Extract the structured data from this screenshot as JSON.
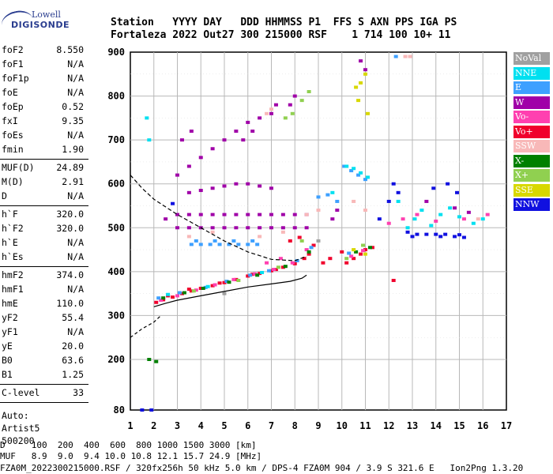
{
  "logo": {
    "line1": "Lowell",
    "line2": "DIGISONDE"
  },
  "header": {
    "line1": "Station   YYYY DAY   DDD HHMMSS P1  FFS S AXN PPS IGA PS",
    "line2": "Fortaleza 2022 Out27 300 215000 RSF    1 714 100 10+ 11"
  },
  "params": {
    "group1": [
      {
        "label": "foF2",
        "value": "8.550"
      },
      {
        "label": "foF1",
        "value": "N/A"
      },
      {
        "label": "foF1p",
        "value": "N/A"
      },
      {
        "label": "foE",
        "value": "N/A"
      },
      {
        "label": "foEp",
        "value": "0.52"
      },
      {
        "label": "fxI",
        "value": "9.35"
      },
      {
        "label": "foEs",
        "value": "N/A"
      },
      {
        "label": "fmin",
        "value": "1.90"
      }
    ],
    "group2": [
      {
        "label": "MUF(D)",
        "value": "24.89"
      },
      {
        "label": "M(D)",
        "value": "2.91"
      },
      {
        "label": "D",
        "value": "N/A"
      }
    ],
    "group3": [
      {
        "label": "h`F",
        "value": "320.0"
      },
      {
        "label": "h`F2",
        "value": "320.0"
      },
      {
        "label": "h`E",
        "value": "N/A"
      },
      {
        "label": "h`Es",
        "value": "N/A"
      }
    ],
    "group4": [
      {
        "label": "hmF2",
        "value": "374.0"
      },
      {
        "label": "hmF1",
        "value": "N/A"
      },
      {
        "label": "hmE",
        "value": "110.0"
      },
      {
        "label": "yF2",
        "value": "55.4"
      },
      {
        "label": "yF1",
        "value": "N/A"
      },
      {
        "label": "yE",
        "value": "20.0"
      },
      {
        "label": "B0",
        "value": "63.6"
      },
      {
        "label": "B1",
        "value": "1.25"
      }
    ],
    "group5": [
      {
        "label": "C-level",
        "value": "33"
      }
    ],
    "auto": [
      "Auto:",
      "Artist5",
      "500200"
    ]
  },
  "footer": {
    "d_row": "D     100  200  400  600  800 1000 1500 3000 [km]",
    "muf_row": "MUF   8.9  9.0  9.4 10.0 10.8 12.1 15.7 24.9 [MHz]",
    "file_row": "FZA0M_2022300215000.RSF / 320fx256h 50 kHz 5.0 km / DPS-4 FZA0M 904 / 3.9 S 321.6 E   Ion2Png 1.3.20"
  },
  "legend": [
    {
      "label": "NoVal",
      "color": "#a0a0a0"
    },
    {
      "label": "NNE",
      "color": "#00e0f0"
    },
    {
      "label": "E",
      "color": "#3ea0ff"
    },
    {
      "label": "W",
      "color": "#a000a8"
    },
    {
      "label": "Vo-",
      "color": "#ff40b0"
    },
    {
      "label": "Vo+",
      "color": "#f0002c"
    },
    {
      "label": "SSW",
      "color": "#f8b8b8"
    },
    {
      "label": "X-",
      "color": "#008000"
    },
    {
      "label": "X+",
      "color": "#90d050"
    },
    {
      "label": "SSE",
      "color": "#d8d800"
    },
    {
      "label": "NNW",
      "color": "#1010e0"
    }
  ],
  "chart_data": {
    "type": "scatter",
    "xlim": [
      1,
      17
    ],
    "ylim": [
      80,
      900
    ],
    "x_ticks": [
      1,
      2,
      3,
      4,
      5,
      6,
      7,
      8,
      9,
      10,
      11,
      12,
      13,
      14,
      15,
      16,
      17
    ],
    "y_ticks": [
      80,
      200,
      300,
      400,
      500,
      600,
      700,
      800,
      900
    ],
    "grid": true,
    "legend_position": "right",
    "profile_solid": [
      [
        2.0,
        320
      ],
      [
        2.5,
        328
      ],
      [
        3.0,
        335
      ],
      [
        4.0,
        345
      ],
      [
        5.0,
        355
      ],
      [
        6.0,
        365
      ],
      [
        7.0,
        372
      ],
      [
        7.8,
        378
      ],
      [
        8.3,
        385
      ],
      [
        8.5,
        392
      ]
    ],
    "profile_dashed": [
      [
        1.0,
        250
      ],
      [
        1.5,
        270
      ],
      [
        2.0,
        285
      ],
      [
        2.3,
        300
      ]
    ],
    "profile_upper": [
      [
        1.0,
        620
      ],
      [
        1.5,
        590
      ],
      [
        2.0,
        565
      ],
      [
        3.0,
        530
      ],
      [
        4.0,
        500
      ],
      [
        5.0,
        470
      ],
      [
        6.0,
        445
      ],
      [
        7.0,
        428
      ],
      [
        8.0,
        425
      ],
      [
        8.5,
        435
      ]
    ],
    "series": [
      {
        "color": "#f0002c",
        "points": [
          [
            2.1,
            330
          ],
          [
            2.4,
            336
          ],
          [
            2.8,
            342
          ],
          [
            3.2,
            350
          ],
          [
            3.6,
            356
          ],
          [
            4.0,
            362
          ],
          [
            4.5,
            368
          ],
          [
            5.0,
            375
          ],
          [
            5.5,
            382
          ],
          [
            6.0,
            390
          ],
          [
            6.5,
            396
          ],
          [
            7.0,
            402
          ],
          [
            7.5,
            410
          ],
          [
            8.0,
            418
          ],
          [
            8.4,
            430
          ],
          [
            8.6,
            440
          ],
          [
            7.8,
            470
          ],
          [
            8.2,
            478
          ],
          [
            10.2,
            420
          ],
          [
            10.5,
            430
          ],
          [
            10.8,
            440
          ],
          [
            11.0,
            450
          ],
          [
            9.2,
            420
          ],
          [
            9.5,
            430
          ],
          [
            2.6,
            345
          ],
          [
            3.5,
            360
          ],
          [
            4.8,
            374
          ],
          [
            6.2,
            394
          ],
          [
            7.2,
            405
          ],
          [
            8.8,
            460
          ],
          [
            10.0,
            445
          ],
          [
            11.3,
            455
          ],
          [
            12.2,
            380
          ]
        ]
      },
      {
        "color": "#ff40b0",
        "points": [
          [
            2.3,
            335
          ],
          [
            3.0,
            345
          ],
          [
            3.8,
            358
          ],
          [
            4.6,
            370
          ],
          [
            5.4,
            382
          ],
          [
            6.3,
            395
          ],
          [
            7.1,
            405
          ],
          [
            7.9,
            420
          ],
          [
            8.5,
            450
          ],
          [
            6.8,
            420
          ],
          [
            7.4,
            430
          ],
          [
            10.4,
            435
          ],
          [
            10.9,
            448
          ],
          [
            12.0,
            510
          ],
          [
            12.6,
            520
          ],
          [
            13.2,
            530
          ],
          [
            14.0,
            515
          ],
          [
            15.2,
            520
          ],
          [
            16.2,
            530
          ]
        ]
      },
      {
        "color": "#3ea0ff",
        "points": [
          [
            2.2,
            340
          ],
          [
            3.1,
            352
          ],
          [
            4.2,
            364
          ],
          [
            5.1,
            378
          ],
          [
            6.1,
            392
          ],
          [
            6.9,
            402
          ],
          [
            8.1,
            425
          ],
          [
            8.7,
            455
          ],
          [
            10.3,
            442
          ],
          [
            3.6,
            462
          ],
          [
            4.0,
            462
          ],
          [
            4.4,
            462
          ],
          [
            4.8,
            462
          ],
          [
            5.2,
            462
          ],
          [
            5.6,
            462
          ],
          [
            6.0,
            462
          ],
          [
            6.4,
            462
          ],
          [
            3.8,
            470
          ],
          [
            4.6,
            470
          ],
          [
            5.4,
            470
          ],
          [
            6.2,
            470
          ],
          [
            9.0,
            570
          ],
          [
            9.4,
            575
          ],
          [
            9.8,
            560
          ],
          [
            10.1,
            640
          ],
          [
            10.4,
            630
          ],
          [
            10.7,
            620
          ],
          [
            11.0,
            610
          ],
          [
            12.3,
            890
          ]
        ]
      },
      {
        "color": "#00e0f0",
        "points": [
          [
            2.6,
            348
          ],
          [
            4.3,
            366
          ],
          [
            6.6,
            398
          ],
          [
            10.2,
            640
          ],
          [
            10.5,
            635
          ],
          [
            10.8,
            625
          ],
          [
            11.1,
            615
          ],
          [
            9.6,
            580
          ],
          [
            13.1,
            520
          ],
          [
            13.4,
            540
          ],
          [
            14.2,
            530
          ],
          [
            14.6,
            545
          ],
          [
            15.0,
            525
          ],
          [
            12.4,
            560
          ],
          [
            12.8,
            500
          ],
          [
            13.8,
            505
          ],
          [
            1.8,
            700
          ],
          [
            1.7,
            750
          ],
          [
            15.6,
            510
          ],
          [
            16.0,
            520
          ]
        ]
      },
      {
        "color": "#a000a8",
        "points": [
          [
            2.5,
            520
          ],
          [
            3.0,
            530
          ],
          [
            3.5,
            530
          ],
          [
            4.0,
            530
          ],
          [
            4.5,
            530
          ],
          [
            5.0,
            530
          ],
          [
            5.5,
            530
          ],
          [
            6.0,
            530
          ],
          [
            6.5,
            530
          ],
          [
            7.0,
            530
          ],
          [
            7.5,
            530
          ],
          [
            8.0,
            530
          ],
          [
            8.5,
            530
          ],
          [
            3.0,
            500
          ],
          [
            3.5,
            500
          ],
          [
            4.0,
            500
          ],
          [
            4.5,
            500
          ],
          [
            5.0,
            500
          ],
          [
            5.5,
            500
          ],
          [
            6.0,
            500
          ],
          [
            6.5,
            500
          ],
          [
            7.0,
            500
          ],
          [
            7.5,
            500
          ],
          [
            8.0,
            500
          ],
          [
            8.5,
            500
          ],
          [
            3.5,
            580
          ],
          [
            4.0,
            585
          ],
          [
            4.5,
            590
          ],
          [
            5.0,
            595
          ],
          [
            5.5,
            600
          ],
          [
            6.0,
            600
          ],
          [
            6.5,
            595
          ],
          [
            7.0,
            590
          ],
          [
            3.0,
            620
          ],
          [
            3.5,
            640
          ],
          [
            4.0,
            660
          ],
          [
            4.5,
            680
          ],
          [
            5.0,
            700
          ],
          [
            5.5,
            720
          ],
          [
            6.0,
            740
          ],
          [
            6.5,
            750
          ],
          [
            7.0,
            760
          ],
          [
            3.2,
            700
          ],
          [
            3.6,
            720
          ],
          [
            7.8,
            780
          ],
          [
            8.0,
            800
          ],
          [
            7.2,
            780
          ],
          [
            5.8,
            700
          ],
          [
            6.2,
            720
          ],
          [
            10.8,
            880
          ],
          [
            11.0,
            860
          ],
          [
            13.6,
            560
          ],
          [
            14.8,
            545
          ],
          [
            15.4,
            535
          ],
          [
            9.6,
            520
          ],
          [
            9.8,
            540
          ]
        ]
      },
      {
        "color": "#f8b8b8",
        "points": [
          [
            3.5,
            480
          ],
          [
            4.5,
            490
          ],
          [
            6.5,
            480
          ],
          [
            7.5,
            490
          ],
          [
            8.5,
            530
          ],
          [
            9.0,
            540
          ],
          [
            10.5,
            560
          ],
          [
            11.0,
            540
          ],
          [
            12.7,
            890
          ],
          [
            12.9,
            890
          ],
          [
            6.8,
            760
          ],
          [
            7.0,
            770
          ],
          [
            15.8,
            520
          ]
        ]
      },
      {
        "color": "#008000",
        "points": [
          [
            2.4,
            340
          ],
          [
            3.3,
            352
          ],
          [
            4.1,
            362
          ],
          [
            5.2,
            376
          ],
          [
            6.4,
            392
          ],
          [
            7.6,
            412
          ],
          [
            8.6,
            445
          ],
          [
            10.6,
            445
          ],
          [
            11.2,
            455
          ],
          [
            1.8,
            200
          ],
          [
            2.1,
            195
          ]
        ]
      },
      {
        "color": "#90d050",
        "points": [
          [
            3.7,
            356
          ],
          [
            5.6,
            380
          ],
          [
            7.3,
            410
          ],
          [
            8.3,
            470
          ],
          [
            10.2,
            430
          ],
          [
            10.9,
            460
          ],
          [
            7.6,
            750
          ],
          [
            7.9,
            760
          ],
          [
            8.3,
            790
          ],
          [
            8.6,
            810
          ]
        ]
      },
      {
        "color": "#d8d800",
        "points": [
          [
            10.6,
            820
          ],
          [
            10.8,
            830
          ],
          [
            11.0,
            850
          ],
          [
            10.7,
            790
          ],
          [
            11.1,
            760
          ],
          [
            10.5,
            450
          ],
          [
            11.0,
            440
          ]
        ]
      },
      {
        "color": "#1010e0",
        "points": [
          [
            12.8,
            490
          ],
          [
            13.2,
            485
          ],
          [
            13.6,
            485
          ],
          [
            14.0,
            485
          ],
          [
            14.4,
            485
          ],
          [
            14.8,
            480
          ],
          [
            15.2,
            478
          ],
          [
            13.0,
            480
          ],
          [
            14.2,
            480
          ],
          [
            15.0,
            484
          ],
          [
            11.6,
            520
          ],
          [
            12.0,
            560
          ],
          [
            12.2,
            600
          ],
          [
            12.4,
            580
          ],
          [
            13.9,
            590
          ],
          [
            14.5,
            600
          ],
          [
            14.9,
            580
          ],
          [
            2.8,
            555
          ],
          [
            1.5,
            80
          ],
          [
            1.9,
            80
          ]
        ]
      },
      {
        "color": "#a0a0a0",
        "points": [
          [
            5.0,
            350
          ],
          [
            9.0,
            470
          ]
        ]
      }
    ]
  }
}
